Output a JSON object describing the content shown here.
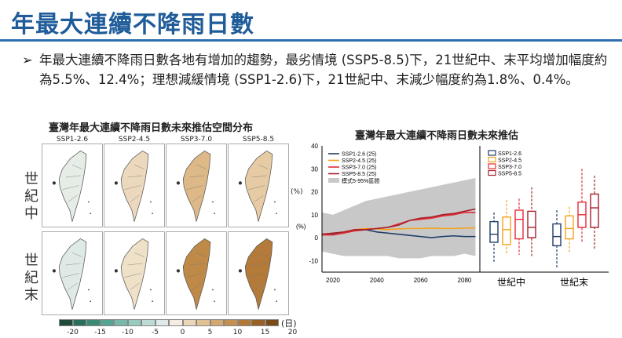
{
  "title": "年最大連續不降雨日數",
  "bullet": {
    "marker": "➢",
    "text": "年最大連續不降雨日數各地有增加的趨勢，最劣情境 (SSP5-8.5)下，21世紀中、末平均增加幅度約為5.5%、12.4%；理想減緩情境 (SSP1-2.6)下，21世紀中、末減少幅度約為1.8%、0.4%。"
  },
  "map_figure": {
    "title": "臺灣年最大連續不降雨日數未來推估空間分布",
    "scenarios": [
      "SSP1-2.6",
      "SSP2-4.5",
      "SSP3-7.0",
      "SSP5-8.5"
    ],
    "rows": [
      "世紀中",
      "世紀末"
    ],
    "unit_right": "(%)",
    "panel_colors": [
      [
        "#e6ece6",
        "#ecd9bd",
        "#ddb987",
        "#e6cba4"
      ],
      [
        "#dfeae6",
        "#efe0c8",
        "#bf8a47",
        "#b37a3a"
      ]
    ],
    "colorbar": {
      "colors": [
        "#1f4a3c",
        "#2c6e5c",
        "#3b8a76",
        "#55a392",
        "#76b8a9",
        "#98cabf",
        "#bcdbd4",
        "#dfeae8",
        "#f4ece0",
        "#ebd6b8",
        "#e0c095",
        "#d4a871",
        "#c58f51",
        "#b17838",
        "#976126",
        "#7a4a18"
      ],
      "ticks": [
        "-20",
        "-15",
        "-10",
        "-5",
        "0",
        "5",
        "10",
        "15",
        "20"
      ],
      "unit": "(日)"
    }
  },
  "chart_data": {
    "title": "臺灣年最大連續不降雨日數未來推估",
    "type": "line",
    "ylabel": "(%)",
    "ylim": [
      -15,
      40
    ],
    "yticks": [
      -10,
      0,
      10,
      20,
      30,
      40
    ],
    "xlim": [
      2015,
      2087
    ],
    "xticks": [
      2020,
      2040,
      2060,
      2080
    ],
    "x": [
      2015,
      2020,
      2025,
      2030,
      2035,
      2040,
      2045,
      2050,
      2055,
      2060,
      2065,
      2070,
      2075,
      2080,
      2085
    ],
    "series": [
      {
        "name": "SSP1-2.6 (25)",
        "color": "#1f3d66",
        "values": [
          1.5,
          1.5,
          2.5,
          3,
          3.5,
          2.5,
          2,
          1.5,
          1,
          0.5,
          0,
          0.5,
          0.8,
          0.5,
          0.5
        ]
      },
      {
        "name": "SSP2-4.5 (25)",
        "color": "#f5a21b",
        "values": [
          1.5,
          2,
          2.5,
          3.5,
          4,
          3.8,
          3.5,
          3.8,
          4,
          4,
          4.2,
          4,
          4,
          4.2,
          4.3
        ]
      },
      {
        "name": "SSP3-7.0 (25)",
        "color": "#e52b35",
        "values": [
          1.2,
          1.2,
          2,
          3,
          3.5,
          4,
          4.5,
          6,
          7.5,
          8,
          8.5,
          9.5,
          10,
          11,
          11
        ]
      },
      {
        "name": "SSP5-8.5 (25)",
        "color": "#a5202c",
        "values": [
          1.5,
          2,
          2.5,
          3.5,
          3.5,
          4,
          4.5,
          5.5,
          7.5,
          8.5,
          9,
          10,
          10.5,
          11.5,
          12.5
        ]
      }
    ],
    "band": {
      "name": "模式5-95%區間",
      "color": "#c9c8c8",
      "lower": [
        -6,
        -7,
        -8,
        -8,
        -8,
        -8,
        -8,
        -9,
        -9,
        -9,
        -8,
        -8,
        -8,
        -7,
        -8
      ],
      "upper": [
        11,
        10,
        12,
        14,
        16,
        17,
        18,
        19,
        20,
        21,
        22,
        23,
        24,
        25,
        26
      ]
    },
    "boxplot": {
      "categories": [
        "世紀中",
        "世紀末"
      ],
      "legend": [
        "SSP1-2.6",
        "SSP2-4.5",
        "SSP3-7.0",
        "SSP5-8.5"
      ],
      "colors": [
        "#1f3d66",
        "#f5a21b",
        "#e52b35",
        "#a5202c"
      ],
      "groups": [
        [
          {
            "min": -10.5,
            "q1": -2,
            "median": 1.5,
            "q3": 7,
            "max": 11
          },
          {
            "min": -7,
            "q1": -3,
            "median": 3.5,
            "q3": 9,
            "max": 16.5
          },
          {
            "min": -7.5,
            "q1": -0.5,
            "median": 8,
            "q3": 12,
            "max": 17
          },
          {
            "min": -8,
            "q1": 0,
            "median": 4.5,
            "q3": 11.5,
            "max": 22
          }
        ],
        [
          {
            "min": -13,
            "q1": -3.5,
            "median": 0.5,
            "q3": 6,
            "max": 12
          },
          {
            "min": -6.5,
            "q1": -0.5,
            "median": 4,
            "q3": 9.5,
            "max": 13.5
          },
          {
            "min": -2,
            "q1": 4.5,
            "median": 10,
            "q3": 15.5,
            "max": 30
          },
          {
            "min": -5,
            "q1": 4.5,
            "median": 13,
            "q3": 19,
            "max": 27
          }
        ]
      ]
    }
  }
}
